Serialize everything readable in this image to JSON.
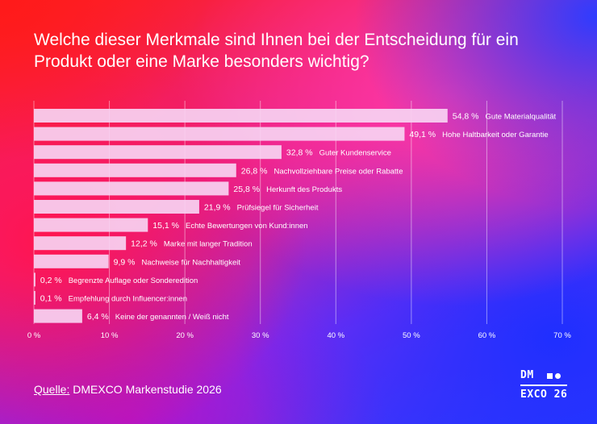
{
  "title": "Welche dieser Merkmale sind Ihnen bei der Entscheidung für ein Produkt oder eine Marke besonders wichtig?",
  "source": {
    "label": "Quelle:",
    "text": "DMEXCO Markenstudie 2026"
  },
  "logo": {
    "line1": "DM",
    "line2": "EXCO 26"
  },
  "chart_data": {
    "type": "bar",
    "orientation": "horizontal",
    "categories": [
      "Gute Materialqualität",
      "Hohe Haltbarkeit oder Garantie",
      "Guter Kundenservice",
      "Nachvollziehbare Preise oder Rabatte",
      "Herkunft des Produkts",
      "Prüfsiegel für Sicherheit",
      "Echte Bewertungen von Kund:innen",
      "Marke mit langer Tradition",
      "Nachweise für Nachhaltigkeit",
      "Begrenzte Auflage oder Sonderedition",
      "Empfehlung durch Influencer:innen",
      "Keine der genannten / Weiß nicht"
    ],
    "values": [
      54.8,
      49.1,
      32.8,
      26.8,
      25.8,
      21.9,
      15.1,
      12.2,
      9.9,
      0.2,
      0.1,
      6.4
    ],
    "value_labels": [
      "54,8 %",
      "49,1 %",
      "32,8 %",
      "26,8 %",
      "25,8 %",
      "21,9 %",
      "15,1 %",
      "12,2 %",
      "9,9 %",
      "0,2 %",
      "0,1 %",
      "6,4 %"
    ],
    "x_ticks": [
      0,
      10,
      20,
      30,
      40,
      50,
      60,
      70
    ],
    "x_tick_labels": [
      "0 %",
      "10 %",
      "20 %",
      "30 %",
      "40 %",
      "50 %",
      "60 %",
      "70 %"
    ],
    "xlim": [
      0,
      70
    ],
    "grid": true,
    "colors": {
      "bar": "#f7d2f2",
      "grid": "#ffffff",
      "text": "#ffffff"
    }
  }
}
